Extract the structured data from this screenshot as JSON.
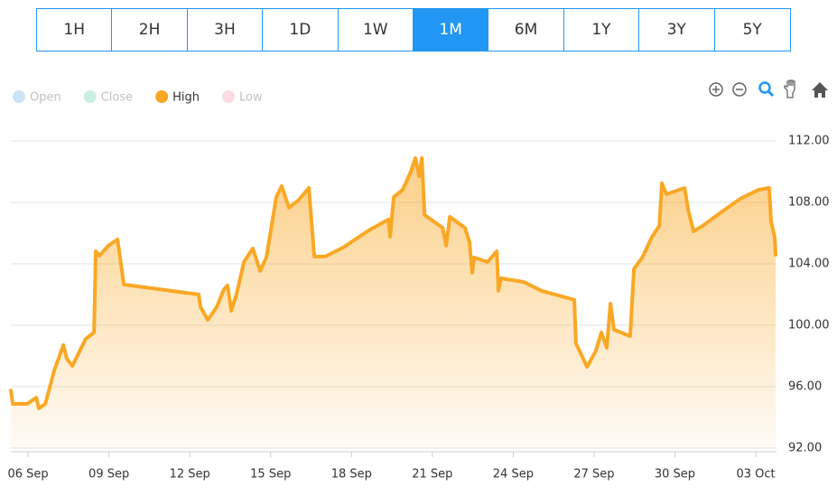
{
  "range_buttons": {
    "labels": [
      "1H",
      "2H",
      "3H",
      "1D",
      "1W",
      "1M",
      "6M",
      "1Y",
      "3Y",
      "5Y"
    ],
    "active": "1M"
  },
  "chart_data": {
    "type": "area",
    "series": [
      {
        "name": "Open",
        "color": "#5aa9e6",
        "visible": false
      },
      {
        "name": "Close",
        "color": "#4fd1a1",
        "visible": false
      },
      {
        "name": "High",
        "color": "#f9a825",
        "visible": true,
        "x": [
          5.36,
          5.43,
          5.97,
          6.3,
          6.4,
          6.64,
          6.97,
          7.31,
          7.44,
          7.64,
          8.14,
          8.45,
          8.51,
          8.65,
          8.98,
          9.32,
          9.55,
          12.33,
          12.4,
          12.67,
          13.0,
          13.27,
          13.4,
          13.54,
          13.74,
          14.01,
          14.34,
          14.61,
          14.84,
          15.21,
          15.41,
          15.68,
          16.02,
          16.42,
          16.62,
          17.02,
          17.69,
          18.7,
          19.37,
          19.43,
          19.57,
          19.9,
          20.2,
          20.37,
          20.51,
          20.61,
          20.71,
          21.38,
          21.51,
          21.65,
          22.21,
          22.38,
          22.48,
          22.55,
          23.05,
          23.39,
          23.45,
          23.55,
          24.39,
          25.06,
          26.27,
          26.33,
          26.74,
          27.07,
          27.27,
          27.47,
          27.61,
          27.74,
          28.34,
          28.48,
          28.81,
          29.15,
          29.42,
          29.52,
          29.69,
          30.36,
          30.49,
          30.69,
          31.03,
          31.76,
          32.43,
          33.1,
          33.5,
          33.57,
          33.7,
          33.74
        ],
        "values": [
          95.76,
          94.88,
          94.88,
          95.29,
          94.59,
          94.88,
          97.06,
          98.71,
          97.82,
          97.35,
          99.12,
          99.53,
          104.82,
          104.53,
          105.18,
          105.59,
          102.65,
          102.0,
          101.18,
          100.35,
          101.18,
          102.35,
          102.59,
          100.94,
          102.06,
          104.12,
          105.0,
          103.53,
          104.41,
          108.35,
          109.06,
          107.65,
          108.12,
          108.94,
          104.47,
          104.47,
          105.06,
          106.24,
          106.88,
          105.76,
          108.35,
          108.82,
          110.0,
          110.88,
          109.71,
          110.88,
          107.18,
          106.35,
          105.18,
          107.06,
          106.35,
          105.41,
          103.41,
          104.41,
          104.12,
          104.82,
          102.24,
          103.06,
          102.82,
          102.24,
          101.65,
          98.82,
          97.29,
          98.35,
          99.53,
          98.53,
          101.41,
          99.71,
          99.29,
          103.65,
          104.47,
          105.76,
          106.47,
          109.24,
          108.53,
          108.94,
          107.53,
          106.12,
          106.47,
          107.41,
          108.24,
          108.82,
          108.94,
          106.76,
          105.76,
          104.59
        ]
      },
      {
        "name": "Low",
        "color": "#f28ca0",
        "visible": false
      }
    ],
    "xlim": [
      5.36,
      33.77
    ],
    "xticks": [
      {
        "value": 6,
        "label": "06 Sep"
      },
      {
        "value": 9,
        "label": "09 Sep"
      },
      {
        "value": 12,
        "label": "12 Sep"
      },
      {
        "value": 15,
        "label": "15 Sep"
      },
      {
        "value": 18,
        "label": "18 Sep"
      },
      {
        "value": 21,
        "label": "21 Sep"
      },
      {
        "value": 24,
        "label": "24 Sep"
      },
      {
        "value": 27,
        "label": "27 Sep"
      },
      {
        "value": 30,
        "label": "30 Sep"
      },
      {
        "value": 33,
        "label": "03 Oct"
      }
    ],
    "ylim": [
      92,
      112
    ],
    "yticks": [
      {
        "value": 92,
        "label": "92.00"
      },
      {
        "value": 96,
        "label": "96.00"
      },
      {
        "value": 100,
        "label": "100.00"
      },
      {
        "value": 104,
        "label": "104.00"
      },
      {
        "value": 108,
        "label": "108.00"
      },
      {
        "value": 112,
        "label": "112.00"
      }
    ],
    "grid": true
  }
}
